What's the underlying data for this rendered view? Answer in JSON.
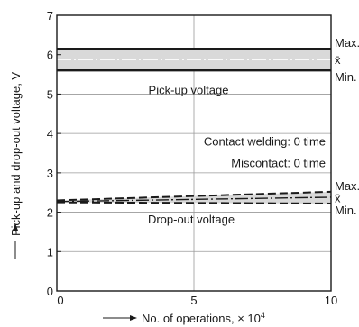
{
  "chart_data": {
    "type": "line",
    "xlabel": "No. of operations, × 10",
    "xlabel_exp": "4",
    "ylabel": "Pick-up and drop-out voltage, V",
    "xlim": [
      0,
      10
    ],
    "ylim": [
      0,
      7
    ],
    "x_ticks": [
      "0",
      "5",
      "10"
    ],
    "y_ticks": [
      "0",
      "1",
      "2",
      "3",
      "4",
      "5",
      "6",
      "7"
    ],
    "grid": true,
    "annotations": [
      "Pick-up voltage",
      "Contact welding: 0 time",
      "Miscontact: 0 time",
      "Drop-out voltage"
    ],
    "series_labels": {
      "max": "Max.",
      "mean": "x̄",
      "min": "Min."
    },
    "groups": [
      {
        "name": "Pick-up voltage",
        "x": [
          0,
          10
        ],
        "max": [
          6.15,
          6.15
        ],
        "mean": [
          5.88,
          5.88
        ],
        "min": [
          5.6,
          5.6
        ]
      },
      {
        "name": "Drop-out voltage",
        "x": [
          0,
          10
        ],
        "max": [
          2.3,
          2.52
        ],
        "mean": [
          2.27,
          2.38
        ],
        "min": [
          2.25,
          2.22
        ]
      }
    ]
  }
}
